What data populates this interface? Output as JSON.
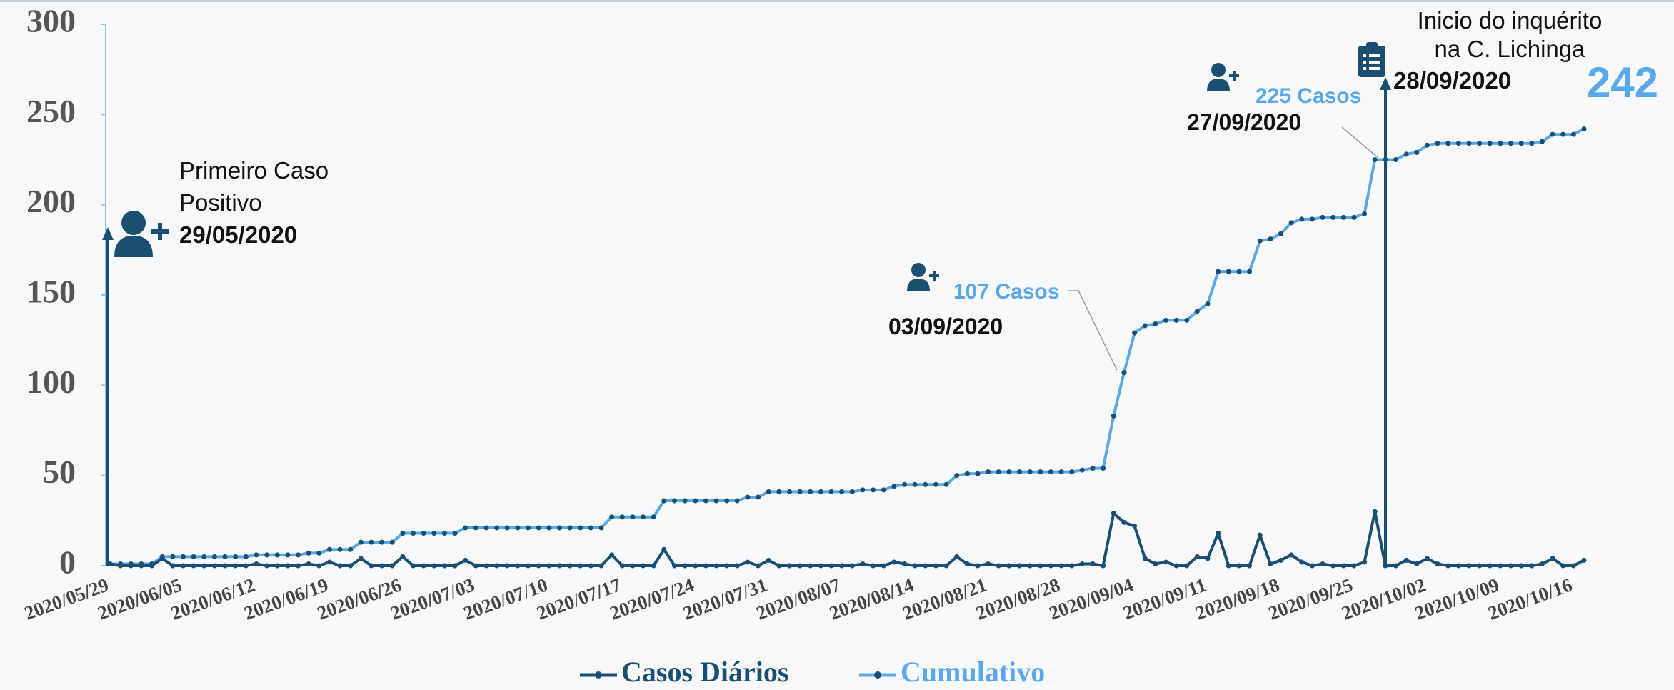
{
  "chart_data": {
    "type": "line",
    "categories": [
      "2020/05/29",
      null,
      null,
      null,
      null,
      null,
      null,
      "2020/06/05",
      null,
      null,
      null,
      null,
      null,
      null,
      "2020/06/12",
      null,
      null,
      null,
      null,
      null,
      null,
      "2020/06/19",
      null,
      null,
      null,
      null,
      null,
      null,
      "2020/06/26",
      null,
      null,
      null,
      null,
      null,
      null,
      "2020/07/03",
      null,
      null,
      null,
      null,
      null,
      null,
      "2020/07/10",
      null,
      null,
      null,
      null,
      null,
      null,
      "2020/07/17",
      null,
      null,
      null,
      null,
      null,
      null,
      "2020/07/24",
      null,
      null,
      null,
      null,
      null,
      null,
      "2020/07/31",
      null,
      null,
      null,
      null,
      null,
      null,
      "2020/08/07",
      null,
      null,
      null,
      null,
      null,
      null,
      "2020/08/14",
      null,
      null,
      null,
      null,
      null,
      null,
      "2020/08/21",
      null,
      null,
      null,
      null,
      null,
      null,
      "2020/08/28",
      null,
      null,
      null,
      null,
      null,
      null,
      "2020/09/04",
      null,
      null,
      null,
      null,
      null,
      null,
      "2020/09/11",
      null,
      null,
      null,
      null,
      null,
      null,
      "2020/09/18",
      null,
      null,
      null,
      null,
      null,
      null,
      "2020/09/25",
      null,
      null,
      null,
      null,
      null,
      null,
      "2020/10/02",
      null,
      null,
      null,
      null,
      null,
      null,
      "2020/10/09",
      null,
      null,
      null,
      null,
      null,
      null,
      "2020/10/16",
      null
    ],
    "series": [
      {
        "name": "Casos Diários",
        "color": "#1b4f72",
        "values": [
          1,
          0,
          0,
          0,
          0,
          4,
          0,
          0,
          0,
          0,
          0,
          0,
          0,
          0,
          1,
          0,
          0,
          0,
          0,
          1,
          0,
          2,
          0,
          0,
          4,
          0,
          0,
          0,
          5,
          0,
          0,
          0,
          0,
          0,
          3,
          0,
          0,
          0,
          0,
          0,
          0,
          0,
          0,
          0,
          0,
          0,
          0,
          0,
          6,
          0,
          0,
          0,
          0,
          9,
          0,
          0,
          0,
          0,
          0,
          0,
          0,
          2,
          0,
          3,
          0,
          0,
          0,
          0,
          0,
          0,
          0,
          0,
          1,
          0,
          0,
          2,
          1,
          0,
          0,
          0,
          0,
          5,
          1,
          0,
          1,
          0,
          0,
          0,
          0,
          0,
          0,
          0,
          0,
          1,
          1,
          0,
          29,
          24,
          22,
          4,
          1,
          2,
          0,
          0,
          5,
          4,
          18,
          0,
          0,
          0,
          17,
          1,
          3,
          6,
          2,
          0,
          1,
          0,
          0,
          0,
          2,
          30,
          0,
          0,
          3,
          1,
          4,
          1,
          0,
          0,
          0,
          0,
          0,
          0,
          0,
          0,
          0,
          1,
          4,
          0,
          0,
          3
        ]
      },
      {
        "name": "Cumulativo",
        "color": "#5aa8e8",
        "values": [
          1,
          1,
          1,
          1,
          1,
          5,
          5,
          5,
          5,
          5,
          5,
          5,
          5,
          5,
          6,
          6,
          6,
          6,
          6,
          7,
          7,
          9,
          9,
          9,
          13,
          13,
          13,
          13,
          18,
          18,
          18,
          18,
          18,
          18,
          21,
          21,
          21,
          21,
          21,
          21,
          21,
          21,
          21,
          21,
          21,
          21,
          21,
          21,
          27,
          27,
          27,
          27,
          27,
          36,
          36,
          36,
          36,
          36,
          36,
          36,
          36,
          38,
          38,
          41,
          41,
          41,
          41,
          41,
          41,
          41,
          41,
          41,
          42,
          42,
          42,
          44,
          45,
          45,
          45,
          45,
          45,
          50,
          51,
          51,
          52,
          52,
          52,
          52,
          52,
          52,
          52,
          52,
          52,
          53,
          54,
          54,
          83,
          107,
          129,
          133,
          134,
          136,
          136,
          136,
          141,
          145,
          163,
          163,
          163,
          163,
          180,
          181,
          184,
          190,
          192,
          192,
          193,
          193,
          193,
          193,
          195,
          225,
          225,
          225,
          228,
          229,
          233,
          234,
          234,
          234,
          234,
          234,
          234,
          234,
          234,
          234,
          234,
          235,
          239,
          239,
          239,
          242
        ]
      }
    ],
    "ylim": [
      0,
      300
    ],
    "yticks": [
      0,
      50,
      100,
      150,
      200,
      250,
      300
    ],
    "grid": false,
    "annotations": [
      "Primeiro Caso",
      "Positivo",
      "29/05/2020",
      "107 Casos",
      "03/09/2020",
      "225 Casos",
      "27/09/2020",
      "Inicio do inquérito",
      "na C. Lichinga",
      "28/09/2020",
      "242"
    ]
  }
}
